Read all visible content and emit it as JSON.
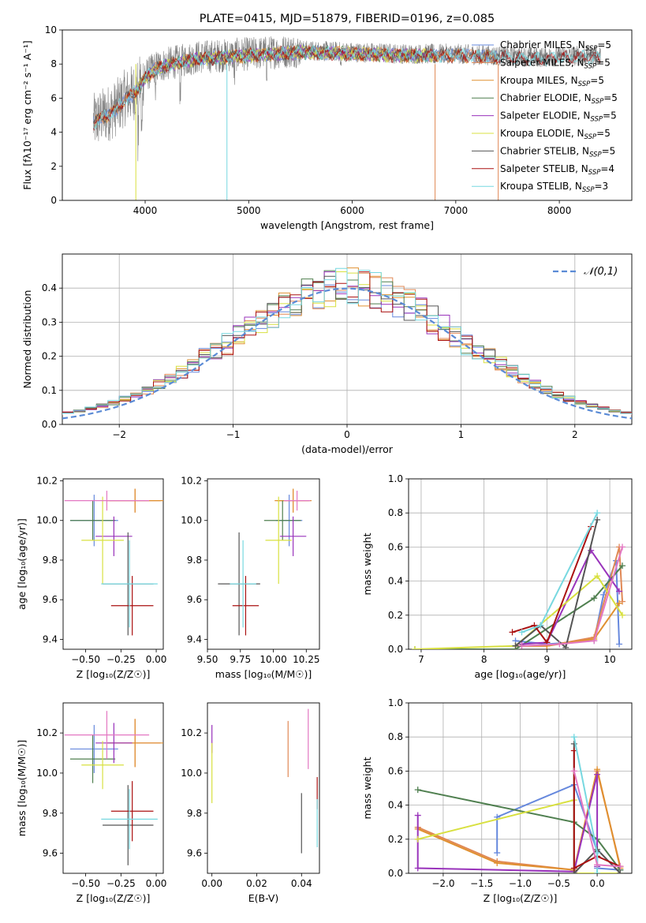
{
  "chart_data": [
    {
      "id": "spectrum",
      "type": "line",
      "title": "PLATE=0415, MJD=51879, FIBERID=0196, z=0.085",
      "xlabel": "wavelength [Angstrom, rest frame]",
      "ylabel": "Flux [fλ10⁻¹⁷ erg cm⁻² s⁻¹ A⁻¹]",
      "xlim": [
        3200,
        8700
      ],
      "ylim": [
        0,
        10
      ],
      "xticks": [
        4000,
        5000,
        6000,
        7000,
        8000
      ],
      "yticks": [
        0,
        2,
        4,
        6,
        8,
        10
      ],
      "legend_position": "right",
      "data_envelope": {
        "x": [
          3500,
          3600,
          3700,
          3800,
          3900,
          4000,
          4100,
          4200,
          4500,
          5000,
          5500,
          6000,
          6500,
          7000,
          7400,
          7800,
          8200,
          8400
        ],
        "y": [
          4.6,
          5.0,
          5.3,
          6.0,
          6.4,
          7.3,
          7.8,
          8.0,
          8.4,
          8.6,
          8.8,
          8.7,
          8.6,
          8.6,
          8.5,
          8.4,
          8.5,
          8.5
        ]
      },
      "models": [
        {
          "name": "Chabrier MILES, N",
          "sub": "SSP",
          "eq": "=5",
          "color": "#6688dd",
          "xrange": [
            3500,
            7400
          ]
        },
        {
          "name": "Salpeter MILES, N",
          "sub": "SSP",
          "eq": "=5",
          "color": "#e08855",
          "xrange": [
            3500,
            7400
          ]
        },
        {
          "name": "Kroupa MILES, N",
          "sub": "SSP",
          "eq": "=5",
          "color": "#e09030",
          "xrange": [
            3500,
            7400
          ]
        },
        {
          "name": "Chabrier ELODIE, N",
          "sub": "SSP",
          "eq": "=5",
          "color": "#4f7f4f",
          "xrange": [
            3900,
            6800
          ]
        },
        {
          "name": "Salpeter ELODIE, N",
          "sub": "SSP",
          "eq": "=5",
          "color": "#9933bb",
          "xrange": [
            3900,
            6800
          ]
        },
        {
          "name": "Kroupa ELODIE, N",
          "sub": "SSP",
          "eq": "=5",
          "color": "#d8e040",
          "xrange": [
            3900,
            6800
          ]
        },
        {
          "name": "Chabrier STELIB, N",
          "sub": "SSP",
          "eq": "=5",
          "color": "#555555",
          "xrange": [
            3500,
            8400
          ]
        },
        {
          "name": "Salpeter STELIB, N",
          "sub": "SSP",
          "eq": "=4",
          "color": "#aa1111",
          "xrange": [
            3500,
            8400
          ]
        },
        {
          "name": "Kroupa STELIB, N",
          "sub": "SSP",
          "eq": "=3",
          "color": "#77d8e0",
          "xrange": [
            3500,
            8400
          ]
        }
      ]
    },
    {
      "id": "residuals",
      "type": "step",
      "xlabel": "(data-model)/error",
      "ylabel": "Normed distribution",
      "xlim": [
        -2.5,
        2.5
      ],
      "ylim": [
        0,
        0.5
      ],
      "xticks": [
        -2,
        -1,
        0,
        1,
        2
      ],
      "yticks": [
        0.0,
        0.1,
        0.2,
        0.3,
        0.4
      ],
      "grid": true,
      "legend": "𝒩(0,1)",
      "legend_position": "top-right",
      "curve_color": "#5b8bd6",
      "bin_width": 0.1,
      "colors": [
        "#6688dd",
        "#e08855",
        "#e09030",
        "#4f7f4f",
        "#9933bb",
        "#d8e040",
        "#555555",
        "#aa1111",
        "#77d8e0"
      ]
    },
    {
      "id": "age_vs_Z",
      "type": "errorbar",
      "xlabel": "Z [log₁₀(Z/Z☉)]",
      "ylabel": "age  [log₁₀(age/yr)]",
      "xlim": [
        -0.66,
        0.05
      ],
      "ylim": [
        9.35,
        10.21
      ],
      "xticks": [
        -0.5,
        -0.25,
        0.0
      ],
      "xtick_labels": [
        "−0.50",
        "−0.25",
        "0.00"
      ],
      "yticks": [
        9.4,
        9.6,
        9.8,
        10.0,
        10.2
      ],
      "points": [
        {
          "x": -0.44,
          "y": 10.0,
          "xerr": 0.17,
          "yerr": 0.13,
          "color": "#6688dd"
        },
        {
          "x": -0.15,
          "y": 10.1,
          "xerr": 0.18,
          "yerr": 0.06,
          "color": "#e08855"
        },
        {
          "x": -0.15,
          "y": 10.1,
          "xerr": 0.2,
          "yerr": 0.06,
          "color": "#e09030"
        },
        {
          "x": -0.45,
          "y": 10.0,
          "xerr": 0.16,
          "yerr": 0.1,
          "color": "#4f7f4f"
        },
        {
          "x": -0.3,
          "y": 9.92,
          "xerr": 0.13,
          "yerr": 0.1,
          "color": "#9933bb"
        },
        {
          "x": -0.38,
          "y": 9.9,
          "xerr": 0.15,
          "yerr": 0.22,
          "color": "#d8e040"
        },
        {
          "x": -0.2,
          "y": 9.68,
          "xerr": 0.18,
          "yerr": 0.26,
          "color": "#555555"
        },
        {
          "x": -0.17,
          "y": 9.57,
          "xerr": 0.15,
          "yerr": 0.15,
          "color": "#aa1111"
        },
        {
          "x": -0.19,
          "y": 9.68,
          "xerr": 0.2,
          "yerr": 0.22,
          "color": "#77d8e0"
        },
        {
          "x": -0.35,
          "y": 10.1,
          "xerr": 0.3,
          "yerr": 0.05,
          "color": "#e377c2"
        }
      ]
    },
    {
      "id": "age_vs_mass",
      "type": "errorbar",
      "xlabel": "mass [log₁₀(M/M☉)]",
      "xlim": [
        9.5,
        10.35
      ],
      "ylim": [
        9.35,
        10.21
      ],
      "xticks": [
        9.5,
        9.75,
        10.0,
        10.25
      ],
      "xtick_labels": [
        "9.50",
        "9.75",
        "10.00",
        "10.25"
      ],
      "yticks": [
        9.4,
        9.6,
        9.8,
        10.0,
        10.2
      ],
      "points": [
        {
          "x": 10.12,
          "y": 10.0,
          "xerr": 0.1,
          "yerr": 0.13,
          "color": "#6688dd"
        },
        {
          "x": 10.15,
          "y": 10.1,
          "xerr": 0.12,
          "yerr": 0.06,
          "color": "#e08855"
        },
        {
          "x": 10.15,
          "y": 10.1,
          "xerr": 0.14,
          "yerr": 0.06,
          "color": "#e09030"
        },
        {
          "x": 10.07,
          "y": 10.0,
          "xerr": 0.14,
          "yerr": 0.1,
          "color": "#4f7f4f"
        },
        {
          "x": 10.15,
          "y": 9.92,
          "xerr": 0.1,
          "yerr": 0.1,
          "color": "#9933bb"
        },
        {
          "x": 10.04,
          "y": 9.9,
          "xerr": 0.1,
          "yerr": 0.22,
          "color": "#d8e040"
        },
        {
          "x": 9.74,
          "y": 9.68,
          "xerr": 0.16,
          "yerr": 0.26,
          "color": "#555555"
        },
        {
          "x": 9.79,
          "y": 9.57,
          "xerr": 0.1,
          "yerr": 0.15,
          "color": "#aa1111"
        },
        {
          "x": 9.77,
          "y": 9.68,
          "xerr": 0.1,
          "yerr": 0.22,
          "color": "#77d8e0"
        },
        {
          "x": 10.18,
          "y": 10.1,
          "xerr": 0.1,
          "yerr": 0.05,
          "color": "#e377c2"
        }
      ]
    },
    {
      "id": "weight_vs_age",
      "type": "line",
      "xlabel": "age  [log₁₀(age/yr)]",
      "ylabel": "mass weight",
      "xlim": [
        6.8,
        10.35
      ],
      "ylim": [
        0,
        1
      ],
      "xticks": [
        7,
        8,
        9,
        10
      ],
      "yticks": [
        0.0,
        0.2,
        0.4,
        0.6,
        0.8,
        1.0
      ],
      "grid": true,
      "series": [
        {
          "color": "#6688dd",
          "x": [
            8.5,
            9.0,
            9.75,
            9.9,
            10.1,
            10.15
          ],
          "y": [
            0.05,
            0.03,
            0.05,
            0.32,
            0.52,
            0.03
          ]
        },
        {
          "color": "#e08855",
          "x": [
            8.5,
            9.0,
            9.75,
            10.15,
            10.2
          ],
          "y": [
            0.02,
            0.02,
            0.07,
            0.6,
            0.28
          ]
        },
        {
          "color": "#e09030",
          "x": [
            8.5,
            9.0,
            9.75,
            10.15
          ],
          "y": [
            0.02,
            0.02,
            0.06,
            0.27
          ]
        },
        {
          "color": "#4f7f4f",
          "x": [
            6.9,
            8.5,
            9.75,
            10.2
          ],
          "y": [
            0.0,
            0.0,
            0.3,
            0.49
          ]
        },
        {
          "color": "#9933bb",
          "x": [
            8.6,
            9.0,
            9.7,
            10.15
          ],
          "y": [
            0.03,
            0.04,
            0.58,
            0.34
          ]
        },
        {
          "color": "#d8e040",
          "x": [
            6.9,
            8.5,
            9.8,
            10.2
          ],
          "y": [
            0.0,
            0.02,
            0.43,
            0.2
          ]
        },
        {
          "color": "#555555",
          "x": [
            8.5,
            8.9,
            9.3,
            9.8
          ],
          "y": [
            0.02,
            0.14,
            0.01,
            0.76
          ]
        },
        {
          "color": "#aa1111",
          "x": [
            8.45,
            8.8,
            9.0,
            9.7
          ],
          "y": [
            0.1,
            0.14,
            0.04,
            0.72
          ]
        },
        {
          "color": "#77d8e0",
          "x": [
            8.6,
            8.9,
            9.8
          ],
          "y": [
            0.1,
            0.14,
            0.8
          ]
        },
        {
          "color": "#e377c2",
          "x": [
            8.6,
            9.2,
            9.75,
            10.2
          ],
          "y": [
            0.02,
            0.03,
            0.05,
            0.6
          ]
        }
      ]
    },
    {
      "id": "mass_vs_Z",
      "type": "errorbar",
      "xlabel": "Z [log₁₀(Z/Z☉)]",
      "ylabel": "mass [log₁₀(M/M☉)]",
      "xlim": [
        -0.66,
        0.05
      ],
      "ylim": [
        9.5,
        10.35
      ],
      "xticks": [
        -0.5,
        -0.25,
        0.0
      ],
      "xtick_labels": [
        "−0.50",
        "−0.25",
        "0.00"
      ],
      "yticks": [
        9.6,
        9.8,
        10.0,
        10.2
      ],
      "points": [
        {
          "x": -0.44,
          "y": 10.12,
          "xerr": 0.17,
          "yerr": 0.12,
          "color": "#6688dd"
        },
        {
          "x": -0.15,
          "y": 10.15,
          "xerr": 0.18,
          "yerr": 0.12,
          "color": "#e08855"
        },
        {
          "x": -0.15,
          "y": 10.15,
          "xerr": 0.2,
          "yerr": 0.12,
          "color": "#e09030"
        },
        {
          "x": -0.45,
          "y": 10.07,
          "xerr": 0.16,
          "yerr": 0.12,
          "color": "#4f7f4f"
        },
        {
          "x": -0.3,
          "y": 10.15,
          "xerr": 0.13,
          "yerr": 0.1,
          "color": "#9933bb"
        },
        {
          "x": -0.38,
          "y": 10.04,
          "xerr": 0.15,
          "yerr": 0.12,
          "color": "#d8e040"
        },
        {
          "x": -0.2,
          "y": 9.74,
          "xerr": 0.18,
          "yerr": 0.2,
          "color": "#555555"
        },
        {
          "x": -0.17,
          "y": 9.81,
          "xerr": 0.15,
          "yerr": 0.15,
          "color": "#aa1111"
        },
        {
          "x": -0.19,
          "y": 9.77,
          "xerr": 0.2,
          "yerr": 0.15,
          "color": "#77d8e0"
        },
        {
          "x": -0.35,
          "y": 10.19,
          "xerr": 0.3,
          "yerr": 0.12,
          "color": "#e377c2"
        }
      ]
    },
    {
      "id": "mass_vs_ebv",
      "type": "errorbar",
      "xlabel": "E(B-V)",
      "xlim": [
        -0.002,
        0.048
      ],
      "ylim": [
        9.5,
        10.35
      ],
      "xticks": [
        0.0,
        0.02,
        0.04
      ],
      "xtick_labels": [
        "0.00",
        "0.02",
        "0.04"
      ],
      "yticks": [
        9.6,
        9.8,
        10.0,
        10.2
      ],
      "points": [
        {
          "x": 0.0,
          "y": 10.17,
          "xerr": 0,
          "yerr": 0.07,
          "color": "#9933bb"
        },
        {
          "x": 0.0,
          "y": 10.0,
          "xerr": 0,
          "yerr": 0.15,
          "color": "#d8e040"
        },
        {
          "x": 0.034,
          "y": 10.12,
          "xerr": 0,
          "yerr": 0.14,
          "color": "#e08855"
        },
        {
          "x": 0.04,
          "y": 9.75,
          "xerr": 0,
          "yerr": 0.15,
          "color": "#555555"
        },
        {
          "x": 0.043,
          "y": 10.17,
          "xerr": 0,
          "yerr": 0.15,
          "color": "#e377c2"
        },
        {
          "x": 0.047,
          "y": 9.9,
          "xerr": 0,
          "yerr": 0.08,
          "color": "#aa1111"
        },
        {
          "x": 0.047,
          "y": 9.75,
          "xerr": 0,
          "yerr": 0.12,
          "color": "#77d8e0"
        }
      ]
    },
    {
      "id": "weight_vs_Z",
      "type": "line",
      "xlabel": "Z [log₁₀(Z/Z☉)]",
      "ylabel": "mass weight",
      "xlim": [
        -2.45,
        0.45
      ],
      "ylim": [
        0,
        1
      ],
      "xticks": [
        -2.0,
        -1.5,
        -1.0,
        -0.5,
        0.0
      ],
      "xtick_labels": [
        "−2.0",
        "−1.5",
        "−1.0",
        "−0.5",
        "0.0"
      ],
      "yticks": [
        0.0,
        0.2,
        0.4,
        0.6,
        0.8,
        1.0
      ],
      "grid": true,
      "series": [
        {
          "color": "#6688dd",
          "x": [
            -1.3,
            -1.3,
            -0.3,
            0.0,
            0.0,
            0.3
          ],
          "y": [
            0.12,
            0.33,
            0.52,
            0.13,
            0.03,
            0.02
          ]
        },
        {
          "color": "#e08855",
          "x": [
            -2.33,
            -1.3,
            -0.3,
            0.0,
            0.3
          ],
          "y": [
            0.27,
            0.07,
            0.02,
            0.6,
            0.04
          ]
        },
        {
          "color": "#e09030",
          "x": [
            -2.33,
            -1.3,
            -0.3,
            0.0,
            0.3
          ],
          "y": [
            0.26,
            0.06,
            0.02,
            0.61,
            0.03
          ]
        },
        {
          "color": "#4f7f4f",
          "x": [
            -2.33,
            -0.3,
            0.0,
            0.3
          ],
          "y": [
            0.49,
            0.3,
            0.2,
            0.02
          ]
        },
        {
          "color": "#9933bb",
          "x": [
            -2.33,
            -2.33,
            -0.3,
            0.0,
            0.0
          ],
          "y": [
            0.34,
            0.03,
            0.01,
            0.58,
            0.04
          ]
        },
        {
          "color": "#d8e040",
          "x": [
            -2.33,
            -0.3,
            -0.3,
            0.0,
            0.3
          ],
          "y": [
            0.2,
            0.43,
            0.0,
            0.0,
            0.0
          ]
        },
        {
          "color": "#555555",
          "x": [
            -0.3,
            -0.3,
            0.0,
            0.3
          ],
          "y": [
            0.76,
            0.0,
            0.14,
            0.0
          ]
        },
        {
          "color": "#aa1111",
          "x": [
            -0.3,
            -0.3,
            0.0,
            0.3
          ],
          "y": [
            0.72,
            0.03,
            0.1,
            0.04
          ]
        },
        {
          "color": "#77d8e0",
          "x": [
            -0.3,
            0.0,
            0.0
          ],
          "y": [
            0.8,
            0.12,
            0.0
          ]
        },
        {
          "color": "#e377c2",
          "x": [
            -0.3,
            0.0,
            0.3
          ],
          "y": [
            0.6,
            0.05,
            0.04
          ]
        }
      ]
    }
  ]
}
